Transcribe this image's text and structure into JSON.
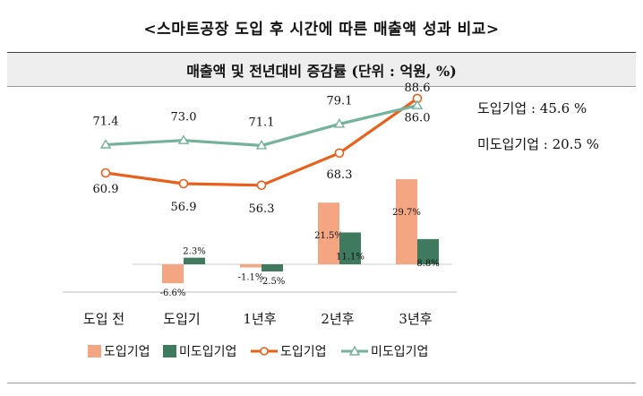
{
  "title": "<스마트공장 도입 후 시간에 따른 매출액 성과 비교>",
  "subtitle": "매출액 및 전년대비 증감률 (단위 : 억원, %)",
  "notes": {
    "adopted": "도입기업 : 45.6 %",
    "not_adopted": "미도입기업 : 20.5 %"
  },
  "chart_data": {
    "type": "bar",
    "categories": [
      "도입 전",
      "도입기",
      "1년후",
      "2년후",
      "3년후"
    ],
    "bar_series": [
      {
        "name": "도입기업",
        "color": "#F4A582",
        "values": [
          null,
          -6.6,
          -1.1,
          21.5,
          29.7
        ],
        "labels": [
          "",
          "-6.6%",
          "-1.1%",
          "21.5%",
          "29.7%"
        ]
      },
      {
        "name": "미도입기업",
        "color": "#3F7A5E",
        "values": [
          null,
          2.3,
          -2.5,
          11.1,
          8.8
        ],
        "labels": [
          "",
          "2.3%",
          "-2.5%",
          "11.1%",
          "8.8%"
        ]
      }
    ],
    "line_series": [
      {
        "name": "도입기업",
        "color": "#E8601C",
        "marker": "circle",
        "values": [
          60.9,
          56.9,
          56.3,
          68.3,
          88.6
        ],
        "labels": [
          "60.9",
          "56.9",
          "56.3",
          "68.3",
          "88.6"
        ]
      },
      {
        "name": "미도입기업",
        "color": "#74B29A",
        "marker": "triangle",
        "values": [
          71.4,
          73.0,
          71.1,
          79.1,
          86.0
        ],
        "labels": [
          "71.4",
          "73.0",
          "71.1",
          "79.1",
          "86.0"
        ]
      }
    ]
  }
}
